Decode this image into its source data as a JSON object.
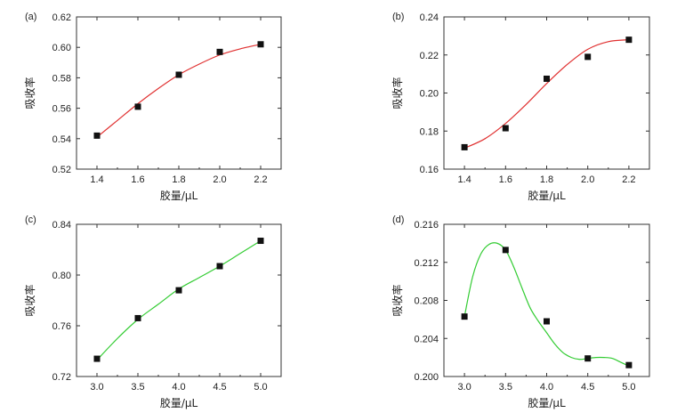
{
  "chart_data": [
    {
      "panel": "(a)",
      "type": "scatter",
      "xlabel": "胶量/μL",
      "ylabel": "吸收率",
      "xlim": [
        1.3,
        2.3
      ],
      "ylim": [
        0.52,
        0.62
      ],
      "xticks": [
        "1.4",
        "1.6",
        "1.8",
        "2.0",
        "2.2"
      ],
      "yticks": [
        "0.52",
        "0.54",
        "0.56",
        "0.58",
        "0.60",
        "0.62"
      ],
      "fit_color": "#e03030",
      "x": [
        1.4,
        1.6,
        1.8,
        2.0,
        2.2
      ],
      "y": [
        0.542,
        0.561,
        0.582,
        0.597,
        0.602
      ],
      "fit": {
        "x": [
          1.4,
          1.5,
          1.6,
          1.7,
          1.8,
          1.9,
          2.0,
          2.1,
          2.2
        ],
        "y": [
          0.541,
          0.552,
          0.563,
          0.573,
          0.582,
          0.589,
          0.595,
          0.599,
          0.602
        ]
      },
      "grid": false
    },
    {
      "panel": "(b)",
      "type": "scatter",
      "xlabel": "胶量/μL",
      "ylabel": "吸收率",
      "xlim": [
        1.3,
        2.3
      ],
      "ylim": [
        0.16,
        0.24
      ],
      "xticks": [
        "1.4",
        "1.6",
        "1.8",
        "2.0",
        "2.2"
      ],
      "yticks": [
        "0.16",
        "0.18",
        "0.20",
        "0.22",
        "0.24"
      ],
      "fit_color": "#e03030",
      "x": [
        1.4,
        1.6,
        1.8,
        2.0,
        2.2
      ],
      "y": [
        0.1715,
        0.1815,
        0.2075,
        0.219,
        0.228
      ],
      "fit": {
        "x": [
          1.4,
          1.5,
          1.6,
          1.7,
          1.8,
          1.9,
          2.0,
          2.1,
          2.2
        ],
        "y": [
          0.171,
          0.176,
          0.184,
          0.194,
          0.205,
          0.215,
          0.223,
          0.227,
          0.228
        ]
      },
      "grid": false
    },
    {
      "panel": "(c)",
      "type": "scatter",
      "xlabel": "胶量/μL",
      "ylabel": "吸收率",
      "xlim": [
        2.75,
        5.25
      ],
      "ylim": [
        0.72,
        0.84
      ],
      "xticks": [
        "3.0",
        "3.5",
        "4.0",
        "4.5",
        "5.0"
      ],
      "yticks": [
        "0.72",
        "0.76",
        "0.80",
        "0.84"
      ],
      "fit_color": "#33cc33",
      "x": [
        3.0,
        3.5,
        4.0,
        4.5,
        5.0
      ],
      "y": [
        0.734,
        0.766,
        0.788,
        0.807,
        0.827
      ],
      "fit": {
        "x": [
          3.0,
          3.25,
          3.5,
          3.75,
          4.0,
          4.25,
          4.5,
          4.75,
          5.0
        ],
        "y": [
          0.733,
          0.75,
          0.765,
          0.777,
          0.789,
          0.798,
          0.807,
          0.817,
          0.827
        ]
      },
      "grid": false
    },
    {
      "panel": "(d)",
      "type": "scatter",
      "xlabel": "胶量/μL",
      "ylabel": "吸收率",
      "xlim": [
        2.75,
        5.25
      ],
      "ylim": [
        0.2,
        0.216
      ],
      "xticks": [
        "3.0",
        "3.5",
        "4.0",
        "4.5",
        "5.0"
      ],
      "yticks": [
        "0.200",
        "0.204",
        "0.208",
        "0.212",
        "0.216"
      ],
      "fit_color": "#33cc33",
      "x": [
        3.0,
        3.5,
        4.0,
        4.5,
        5.0
      ],
      "y": [
        0.2063,
        0.2133,
        0.2058,
        0.2019,
        0.2012
      ],
      "fit": {
        "x": [
          3.0,
          3.1,
          3.2,
          3.3,
          3.4,
          3.5,
          3.6,
          3.7,
          3.8,
          3.9,
          4.0,
          4.1,
          4.2,
          4.3,
          4.4,
          4.5,
          4.6,
          4.7,
          4.8,
          4.9,
          5.0
        ],
        "y": [
          0.2063,
          0.2105,
          0.2129,
          0.2139,
          0.214,
          0.2133,
          0.2115,
          0.2093,
          0.2072,
          0.2058,
          0.2046,
          0.2034,
          0.2025,
          0.202,
          0.2018,
          0.2019,
          0.202,
          0.202,
          0.2019,
          0.2015,
          0.2011
        ]
      },
      "grid": false
    }
  ]
}
